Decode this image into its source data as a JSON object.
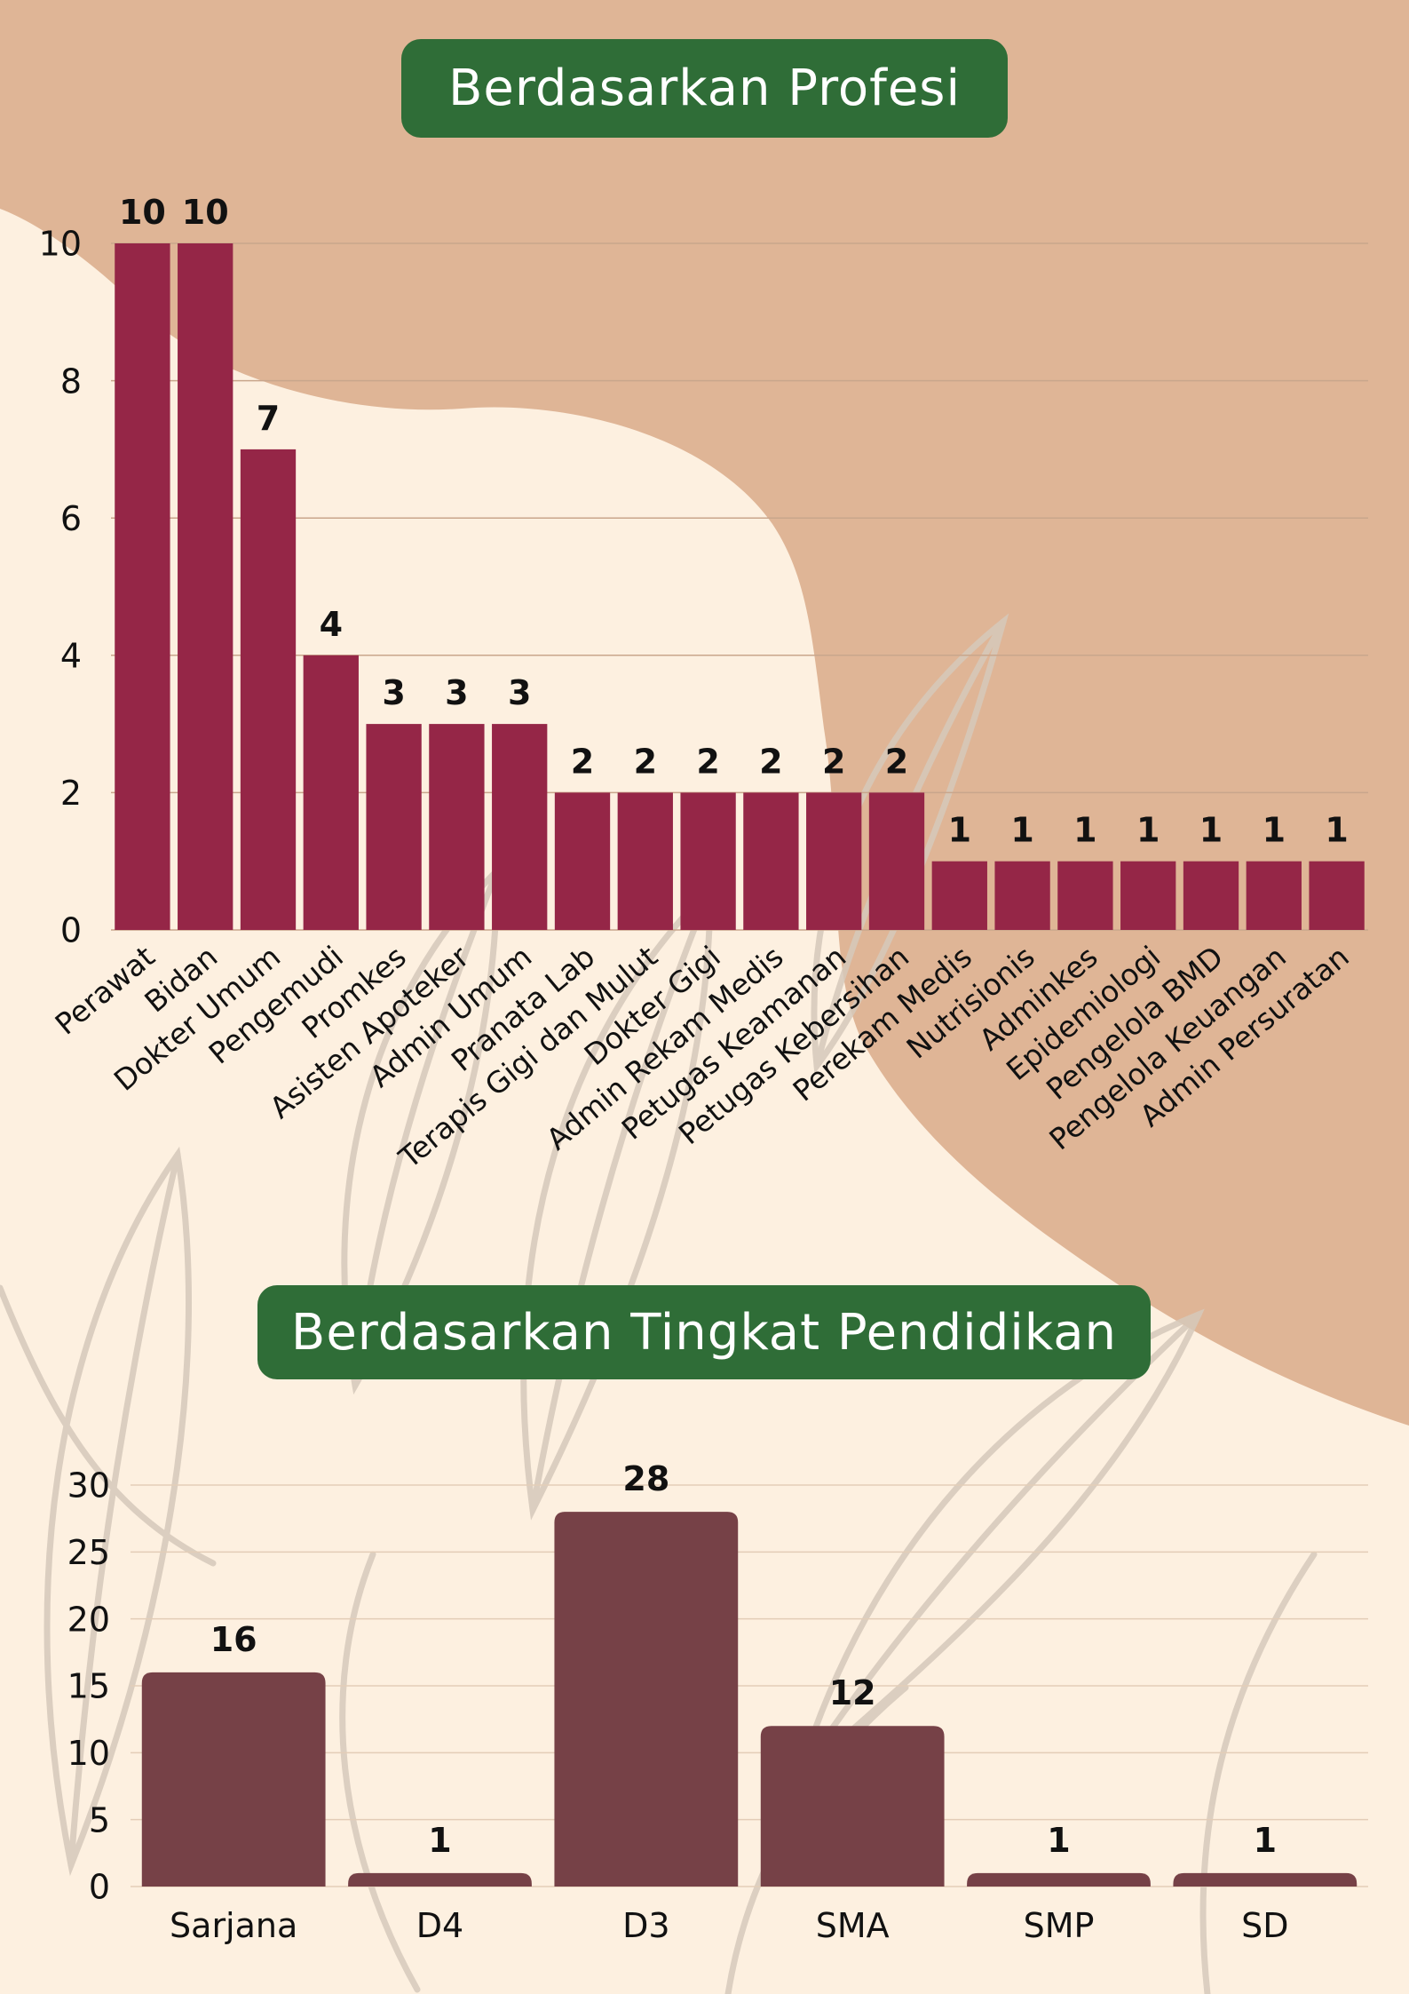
{
  "colors": {
    "background": "#FDF0E0",
    "tan_shape": "#DFB596",
    "title_pill": "#2F6D37",
    "chart1_bar": "#952647",
    "chart2_bar": "#764147",
    "leaf_line": "#D6C9BB"
  },
  "chart_data": [
    {
      "type": "bar",
      "title": "Berdasarkan Profesi",
      "categories": [
        "Perawat",
        "Bidan",
        "Dokter Umum",
        "Pengemudi",
        "Promkes",
        "Asisten Apoteker",
        "Admin Umum",
        "Pranata Lab",
        "Terapis Gigi dan Mulut",
        "Dokter Gigi",
        "Admin Rekam Medis",
        "Petugas Keamanan",
        "Petugas Kebersihan",
        "Perekam Medis",
        "Nutrisionis",
        "Adminkes",
        "Epidemiologi",
        "Pengelola BMD",
        "Pengelola Keuangan",
        "Admin Persuratan"
      ],
      "values": [
        10,
        10,
        7,
        4,
        3,
        3,
        3,
        2,
        2,
        2,
        2,
        2,
        2,
        1,
        1,
        1,
        1,
        1,
        1,
        1
      ],
      "data_labels": [
        "10",
        "10",
        "7",
        "4",
        "3",
        "3",
        "3",
        "2",
        "2",
        "2",
        "2",
        "2",
        "2",
        "1",
        "1",
        "1",
        "1",
        "1",
        "1",
        "1"
      ],
      "yticks": [
        "0",
        "2",
        "4",
        "6",
        "8",
        "10"
      ],
      "ylim": [
        0,
        10
      ],
      "grid": true,
      "legend": "none"
    },
    {
      "type": "bar",
      "title": "Berdasarkan Tingkat Pendidikan",
      "categories": [
        "Sarjana",
        "D4",
        "D3",
        "SMA",
        "SMP",
        "SD"
      ],
      "values": [
        16,
        1,
        28,
        12,
        1,
        1
      ],
      "data_labels": [
        "16",
        "1",
        "28",
        "12",
        "1",
        "1"
      ],
      "yticks": [
        "0",
        "5",
        "10",
        "15",
        "20",
        "25",
        "30"
      ],
      "ylim": [
        0,
        30
      ],
      "grid": true,
      "legend": "none"
    }
  ]
}
